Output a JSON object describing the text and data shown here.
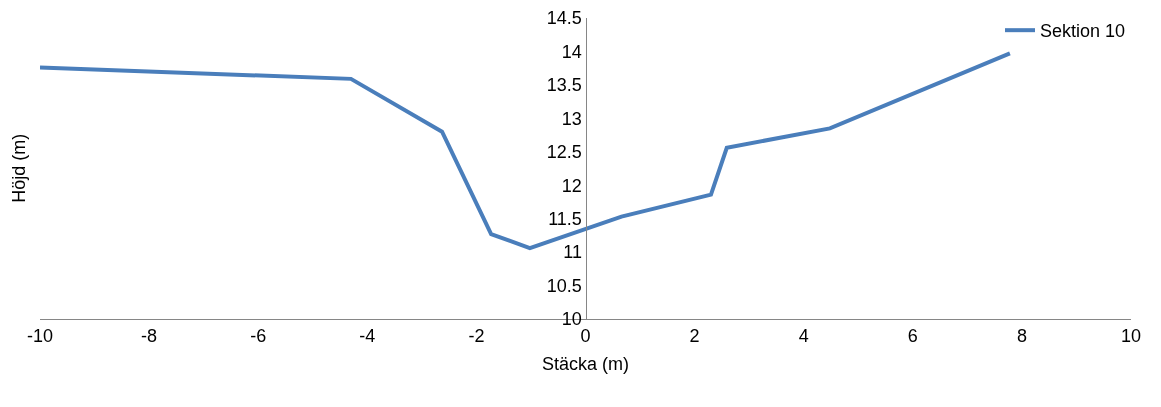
{
  "chart_data": {
    "type": "line",
    "xlabel": "Stäcka (m)",
    "ylabel": "Höjd (m)",
    "x": [
      -10,
      -4.3,
      -2.63,
      -1.73,
      -1.02,
      0.66,
      2.3,
      2.59,
      4.48,
      7.78
    ],
    "series": [
      {
        "name": "Sektion 10",
        "color": "#4a7ebb",
        "values": [
          13.76,
          13.59,
          12.8,
          11.27,
          11.06,
          11.53,
          11.86,
          12.56,
          12.85,
          13.97
        ]
      }
    ],
    "xlim": [
      -10,
      10
    ],
    "xticks": [
      -10,
      -8,
      -6,
      -4,
      -2,
      0,
      2,
      4,
      6,
      8,
      10
    ],
    "ylim": [
      10,
      14.5
    ],
    "yticks": [
      10,
      10.5,
      11,
      11.5,
      12,
      12.5,
      13,
      13.5,
      14,
      14.5
    ],
    "grid": false,
    "legend": "top right",
    "marker": "none",
    "line_style": "solid"
  }
}
